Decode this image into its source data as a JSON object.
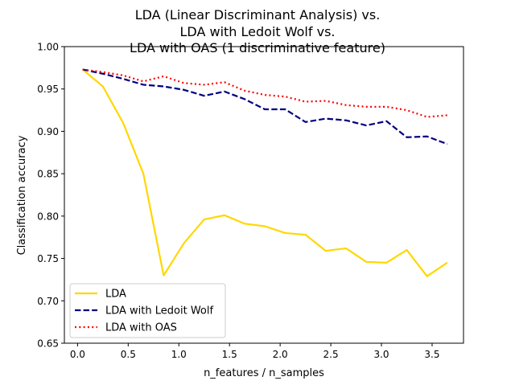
{
  "chart_data": {
    "type": "line",
    "title": [
      "LDA (Linear Discriminant Analysis) vs.",
      "LDA with Ledoit Wolf vs.",
      "LDA with OAS (1 discriminative feature)"
    ],
    "xlabel": "n_features / n_samples",
    "ylabel": "Classification accuracy",
    "xlim": [
      -0.13,
      3.81
    ],
    "ylim": [
      0.65,
      1.0
    ],
    "xticks": [
      "0.0",
      "0.5",
      "1.0",
      "1.5",
      "2.0",
      "2.5",
      "3.0",
      "3.5"
    ],
    "yticks": [
      "0.65",
      "0.70",
      "0.75",
      "0.80",
      "0.85",
      "0.90",
      "0.95",
      "1.00"
    ],
    "grid": false,
    "legend_position": "lower-left",
    "x": [
      0.05,
      0.25,
      0.45,
      0.65,
      0.85,
      1.05,
      1.25,
      1.45,
      1.65,
      1.85,
      2.05,
      2.25,
      2.45,
      2.65,
      2.85,
      3.05,
      3.25,
      3.45,
      3.65
    ],
    "series": [
      {
        "name": "LDA",
        "color": "#ffd700",
        "style": "solid",
        "values": [
          0.973,
          0.953,
          0.91,
          0.85,
          0.73,
          0.768,
          0.796,
          0.801,
          0.791,
          0.788,
          0.78,
          0.778,
          0.759,
          0.762,
          0.746,
          0.745,
          0.76,
          0.729,
          0.745
        ]
      },
      {
        "name": "LDA with Ledoit Wolf",
        "color": "#000080",
        "style": "dashed",
        "values": [
          0.973,
          0.968,
          0.962,
          0.955,
          0.953,
          0.949,
          0.942,
          0.947,
          0.938,
          0.926,
          0.926,
          0.911,
          0.915,
          0.913,
          0.907,
          0.912,
          0.893,
          0.894,
          0.885
        ]
      },
      {
        "name": "LDA with OAS",
        "color": "#ff0000",
        "style": "dotted",
        "values": [
          0.973,
          0.97,
          0.966,
          0.959,
          0.965,
          0.957,
          0.955,
          0.958,
          0.948,
          0.943,
          0.941,
          0.935,
          0.936,
          0.931,
          0.929,
          0.929,
          0.925,
          0.917,
          0.919
        ]
      }
    ]
  }
}
